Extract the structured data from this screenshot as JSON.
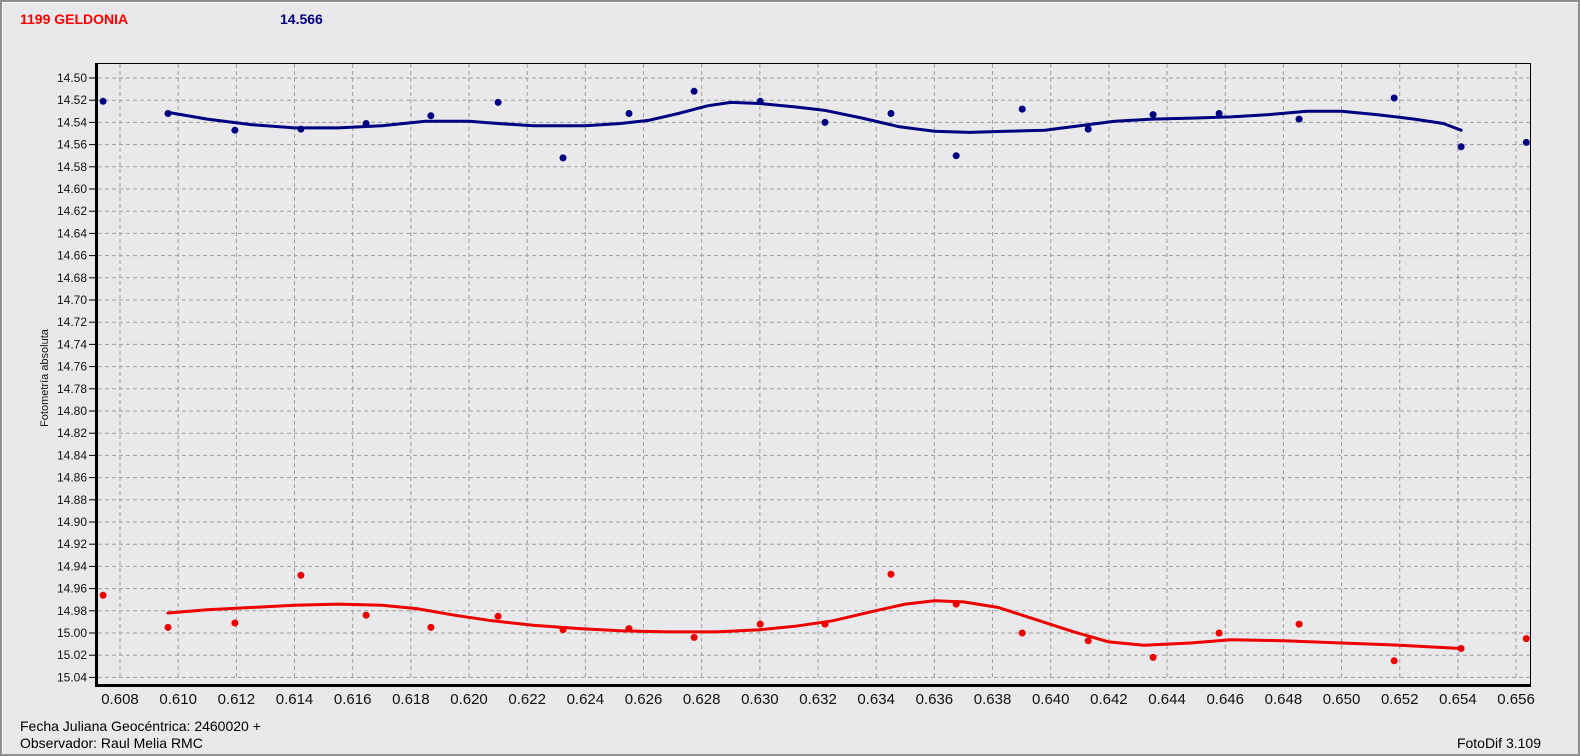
{
  "window": {
    "bg_color": "#e9e9eb"
  },
  "header": {
    "object_name": "1199 GELDONIA",
    "object_name_color": "#ff0000",
    "mean_magnitude": "14.566",
    "mean_magnitude_color": "#000080"
  },
  "footer": {
    "julian_date_label": "Fecha Juliana Geocéntrica: 2460020 +",
    "observer_label": "Observador: Raul Melia RMC",
    "software_label": "FotoDif 3.109"
  },
  "chart_data": {
    "type": "scatter",
    "title": "1199 GELDONIA",
    "subtitle": "14.566",
    "xlabel": "",
    "ylabel": "Fotometría absoluta",
    "grid": {
      "style": "dashed",
      "color": "#9f9f9f"
    },
    "legend": "none",
    "x_axis": {
      "min": 0.608,
      "max": 0.656,
      "step": 0.002,
      "tick_labels": [
        "0.608",
        "0.610",
        "0.612",
        "0.614",
        "0.616",
        "0.618",
        "0.620",
        "0.622",
        "0.624",
        "0.626",
        "0.628",
        "0.630",
        "0.632",
        "0.634",
        "0.636",
        "0.638",
        "0.640",
        "0.642",
        "0.644",
        "0.646",
        "0.648",
        "0.650",
        "0.652",
        "0.654",
        "0.656"
      ]
    },
    "y_axis": {
      "min": 14.5,
      "max": 15.04,
      "step": 0.02,
      "inverted": true,
      "tick_labels": [
        "14.50",
        "14.52",
        "14.54",
        "14.56",
        "14.58",
        "14.60",
        "14.62",
        "14.64",
        "14.66",
        "14.68",
        "14.70",
        "14.72",
        "14.74",
        "14.76",
        "14.78",
        "14.80",
        "14.82",
        "14.84",
        "14.86",
        "14.88",
        "14.90",
        "14.92",
        "14.94",
        "14.96",
        "14.98",
        "15.00",
        "15.02",
        "15.04"
      ]
    },
    "series": [
      {
        "name": "blue-photometry-points",
        "kind": "scatter",
        "color": "#000080",
        "marker_radius": 3.5,
        "points": [
          [
            0.60742,
            14.521
          ],
          [
            0.60965,
            14.532
          ],
          [
            0.61195,
            14.547
          ],
          [
            0.61422,
            14.546
          ],
          [
            0.61646,
            14.541
          ],
          [
            0.61869,
            14.534
          ],
          [
            0.621,
            14.522
          ],
          [
            0.62323,
            14.572
          ],
          [
            0.6255,
            14.532
          ],
          [
            0.62774,
            14.512
          ],
          [
            0.63001,
            14.521
          ],
          [
            0.63224,
            14.54
          ],
          [
            0.63451,
            14.532
          ],
          [
            0.63675,
            14.57
          ],
          [
            0.63902,
            14.528
          ],
          [
            0.64129,
            14.546
          ],
          [
            0.64352,
            14.533
          ],
          [
            0.64579,
            14.532
          ],
          [
            0.64854,
            14.537
          ],
          [
            0.65181,
            14.518
          ],
          [
            0.65411,
            14.562
          ],
          [
            0.65635,
            14.558
          ]
        ]
      },
      {
        "name": "blue-fit-line",
        "kind": "line",
        "color": "#000080",
        "stroke_width": 3,
        "points": [
          [
            0.60965,
            14.531
          ],
          [
            0.611,
            14.537
          ],
          [
            0.6125,
            14.542
          ],
          [
            0.614,
            14.545
          ],
          [
            0.6155,
            14.545
          ],
          [
            0.617,
            14.543
          ],
          [
            0.6185,
            14.539
          ],
          [
            0.62,
            14.539
          ],
          [
            0.621,
            14.541
          ],
          [
            0.6222,
            14.543
          ],
          [
            0.624,
            14.543
          ],
          [
            0.6252,
            14.541
          ],
          [
            0.6262,
            14.538
          ],
          [
            0.6272,
            14.532
          ],
          [
            0.6282,
            14.525
          ],
          [
            0.629,
            14.522
          ],
          [
            0.63,
            14.523
          ],
          [
            0.6312,
            14.526
          ],
          [
            0.6322,
            14.529
          ],
          [
            0.6335,
            14.536
          ],
          [
            0.6348,
            14.544
          ],
          [
            0.636,
            14.548
          ],
          [
            0.6372,
            14.549
          ],
          [
            0.6385,
            14.548
          ],
          [
            0.6398,
            14.547
          ],
          [
            0.641,
            14.543
          ],
          [
            0.6422,
            14.539
          ],
          [
            0.6435,
            14.537
          ],
          [
            0.645,
            14.536
          ],
          [
            0.6462,
            14.535
          ],
          [
            0.6475,
            14.533
          ],
          [
            0.6488,
            14.53
          ],
          [
            0.65,
            14.53
          ],
          [
            0.6512,
            14.533
          ],
          [
            0.6525,
            14.537
          ],
          [
            0.6535,
            14.541
          ],
          [
            0.65411,
            14.547
          ]
        ]
      },
      {
        "name": "red-photometry-points",
        "kind": "scatter",
        "color": "#ee0000",
        "marker_radius": 3.5,
        "points": [
          [
            0.60742,
            14.966
          ],
          [
            0.60965,
            14.995
          ],
          [
            0.61195,
            14.991
          ],
          [
            0.61422,
            14.948
          ],
          [
            0.61646,
            14.984
          ],
          [
            0.61869,
            14.995
          ],
          [
            0.621,
            14.985
          ],
          [
            0.62323,
            14.997
          ],
          [
            0.6255,
            14.996
          ],
          [
            0.62774,
            15.004
          ],
          [
            0.63001,
            14.992
          ],
          [
            0.63224,
            14.992
          ],
          [
            0.63451,
            14.947
          ],
          [
            0.63675,
            14.974
          ],
          [
            0.63902,
            15.0
          ],
          [
            0.64129,
            15.007
          ],
          [
            0.64352,
            15.022
          ],
          [
            0.64579,
            15.0
          ],
          [
            0.64854,
            14.992
          ],
          [
            0.65181,
            15.025
          ],
          [
            0.65411,
            15.014
          ],
          [
            0.65635,
            15.005
          ]
        ]
      },
      {
        "name": "red-fit-line",
        "kind": "line",
        "color": "#ee0000",
        "stroke_width": 3,
        "points": [
          [
            0.60965,
            14.982
          ],
          [
            0.611,
            14.979
          ],
          [
            0.6125,
            14.977
          ],
          [
            0.614,
            14.975
          ],
          [
            0.6155,
            14.974
          ],
          [
            0.617,
            14.975
          ],
          [
            0.6182,
            14.978
          ],
          [
            0.6195,
            14.984
          ],
          [
            0.6208,
            14.989
          ],
          [
            0.6222,
            14.993
          ],
          [
            0.6238,
            14.996
          ],
          [
            0.6252,
            14.998
          ],
          [
            0.6268,
            14.999
          ],
          [
            0.6285,
            14.999
          ],
          [
            0.63,
            14.997
          ],
          [
            0.6312,
            14.994
          ],
          [
            0.6325,
            14.989
          ],
          [
            0.6338,
            14.981
          ],
          [
            0.635,
            14.974
          ],
          [
            0.636,
            14.971
          ],
          [
            0.637,
            14.972
          ],
          [
            0.6382,
            14.977
          ],
          [
            0.6395,
            14.988
          ],
          [
            0.6408,
            14.999
          ],
          [
            0.642,
            15.008
          ],
          [
            0.6432,
            15.011
          ],
          [
            0.6448,
            15.009
          ],
          [
            0.6462,
            15.006
          ],
          [
            0.648,
            15.007
          ],
          [
            0.65,
            15.009
          ],
          [
            0.652,
            15.011
          ],
          [
            0.65411,
            15.014
          ]
        ]
      }
    ]
  }
}
